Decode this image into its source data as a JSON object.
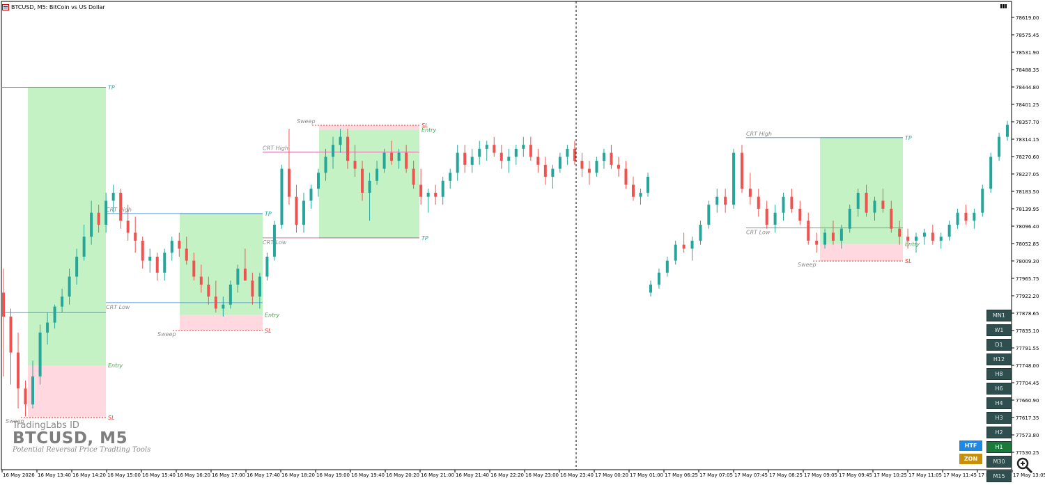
{
  "window": {
    "title": "BTCUSD, M5:  BitCoin vs US Dollar"
  },
  "watermark": {
    "brand": "TradingLabs ID",
    "symbol": "BTCUSD, M5",
    "tagline": "Potential Reversal Price Tradting Tools"
  },
  "colors": {
    "bull": "#26a69a",
    "bear": "#ef5350",
    "tp_zone": "#c4f2c4",
    "sl_zone": "#ffd9df",
    "crt_line": "#5b9bd5",
    "sl_label": "#e53935",
    "entry_label": "#43a047",
    "tp_label": "#26a69a",
    "crt_label": "#8c8c8c",
    "panel_button": "#2f4f4f",
    "panel_active": "#1b7a3a",
    "htf_button": "#1e88e5",
    "zon_button": "#c8900a"
  },
  "price_axis": {
    "ticks": [
      "78619.00",
      "78575.45",
      "78531.90",
      "78488.35",
      "78444.80",
      "78401.25",
      "78357.70",
      "78314.15",
      "78270.60",
      "78227.05",
      "78183.50",
      "78139.95",
      "78096.40",
      "78052.85",
      "78009.30",
      "77965.75",
      "77922.20",
      "77878.65",
      "77835.10",
      "77791.55",
      "77748.00",
      "77704.45",
      "77660.90",
      "77617.35",
      "77573.80",
      "77530.25"
    ]
  },
  "time_axis": {
    "ticks": [
      "16 May 2026",
      "16 May 13:40",
      "16 May 14:20",
      "16 May 15:00",
      "16 May 15:40",
      "16 May 16:20",
      "16 May 17:00",
      "16 May 17:40",
      "16 May 18:20",
      "16 May 19:00",
      "16 May 19:40",
      "16 May 20:20",
      "16 May 21:00",
      "16 May 21:40",
      "16 May 22:20",
      "16 May 23:00",
      "16 May 23:40",
      "17 May 00:20",
      "17 May 01:00",
      "17 May 06:25",
      "17 May 07:05",
      "17 May 07:45",
      "17 May 08:25",
      "17 May 09:05",
      "17 May 09:45",
      "17 May 10:25",
      "17 May 11:05",
      "17 May 11:45",
      "17 May 12:25",
      "17 May 13:05"
    ]
  },
  "chart_data": {
    "type": "candlestick",
    "symbol": "BTCUSD",
    "timeframe": "M5",
    "ylim": [
      77510,
      78640
    ],
    "candles": [
      [
        77930,
        77990,
        77720,
        77870
      ],
      [
        77870,
        77890,
        77700,
        77780
      ],
      [
        77780,
        77830,
        77640,
        77690
      ],
      [
        77690,
        77710,
        77620,
        77650
      ],
      [
        77650,
        77760,
        77640,
        77720
      ],
      [
        77720,
        77850,
        77700,
        77830
      ],
      [
        77830,
        77880,
        77800,
        77855
      ],
      [
        77855,
        77900,
        77840,
        77895
      ],
      [
        77895,
        77940,
        77880,
        77920
      ],
      [
        77920,
        77990,
        77900,
        77970
      ],
      [
        77970,
        78040,
        77950,
        78020
      ],
      [
        78020,
        78100,
        78010,
        78070
      ],
      [
        78070,
        78160,
        78050,
        78130
      ],
      [
        78130,
        78150,
        78080,
        78100
      ],
      [
        78100,
        78180,
        78080,
        78160
      ],
      [
        78160,
        78200,
        78130,
        78180
      ],
      [
        78180,
        78190,
        78090,
        78110
      ],
      [
        78110,
        78150,
        78060,
        78080
      ],
      [
        78080,
        78120,
        78030,
        78060
      ],
      [
        78060,
        78070,
        77990,
        78010
      ],
      [
        78010,
        78040,
        77980,
        78020
      ],
      [
        78020,
        78030,
        77960,
        77980
      ],
      [
        77980,
        78040,
        77960,
        78030
      ],
      [
        78030,
        78070,
        78010,
        78060
      ],
      [
        78060,
        78080,
        78020,
        78040
      ],
      [
        78040,
        78070,
        78000,
        78010
      ],
      [
        78010,
        78030,
        77960,
        77970
      ],
      [
        77970,
        78000,
        77930,
        77950
      ],
      [
        77950,
        77970,
        77900,
        77920
      ],
      [
        77920,
        77960,
        77880,
        77890
      ],
      [
        77890,
        77920,
        77870,
        77900
      ],
      [
        77900,
        77960,
        77890,
        77950
      ],
      [
        77950,
        78000,
        77930,
        77990
      ],
      [
        77990,
        78040,
        77970,
        77960
      ],
      [
        77960,
        77980,
        77900,
        77920
      ],
      [
        77920,
        77980,
        77890,
        77970
      ],
      [
        77970,
        78030,
        77960,
        78020
      ],
      [
        78020,
        78110,
        78010,
        78100
      ],
      [
        78100,
        78250,
        78090,
        78240
      ],
      [
        78240,
        78340,
        78150,
        78170
      ],
      [
        78170,
        78200,
        78080,
        78100
      ],
      [
        78100,
        78180,
        78080,
        78160
      ],
      [
        78160,
        78200,
        78140,
        78190
      ],
      [
        78190,
        78240,
        78170,
        78230
      ],
      [
        78230,
        78290,
        78210,
        78270
      ],
      [
        78270,
        78320,
        78240,
        78300
      ],
      [
        78300,
        78340,
        78280,
        78320
      ],
      [
        78320,
        78340,
        78240,
        78260
      ],
      [
        78260,
        78300,
        78220,
        78240
      ],
      [
        78240,
        78260,
        78160,
        78180
      ],
      [
        78180,
        78230,
        78110,
        78210
      ],
      [
        78210,
        78260,
        78200,
        78240
      ],
      [
        78240,
        78290,
        78230,
        78280
      ],
      [
        78280,
        78310,
        78250,
        78260
      ],
      [
        78260,
        78290,
        78240,
        78280
      ],
      [
        78280,
        78300,
        78230,
        78240
      ],
      [
        78240,
        78260,
        78190,
        78200
      ],
      [
        78200,
        78240,
        78150,
        78170
      ],
      [
        78170,
        78190,
        78130,
        78180
      ],
      [
        78180,
        78200,
        78150,
        78170
      ],
      [
        78170,
        78220,
        78150,
        78210
      ],
      [
        78210,
        78240,
        78190,
        78230
      ],
      [
        78230,
        78300,
        78210,
        78280
      ],
      [
        78280,
        78300,
        78230,
        78250
      ],
      [
        78250,
        78290,
        78230,
        78270
      ],
      [
        78270,
        78310,
        78250,
        78290
      ],
      [
        78290,
        78310,
        78260,
        78300
      ],
      [
        78300,
        78320,
        78270,
        78280
      ],
      [
        78280,
        78300,
        78240,
        78260
      ],
      [
        78260,
        78290,
        78230,
        78270
      ],
      [
        78270,
        78300,
        78250,
        78290
      ],
      [
        78290,
        78320,
        78270,
        78300
      ],
      [
        78300,
        78320,
        78260,
        78270
      ],
      [
        78270,
        78290,
        78230,
        78250
      ],
      [
        78250,
        78270,
        78200,
        78220
      ],
      [
        78220,
        78250,
        78190,
        78240
      ],
      [
        78240,
        78280,
        78230,
        78270
      ],
      [
        78270,
        78300,
        78250,
        78290
      ],
      [
        78290,
        78310,
        78250,
        78260
      ],
      [
        78260,
        78280,
        78220,
        78240
      ],
      [
        78240,
        78260,
        78200,
        78230
      ],
      [
        78230,
        78270,
        78220,
        78260
      ],
      [
        78260,
        78290,
        78240,
        78280
      ],
      [
        78280,
        78300,
        78240,
        78250
      ],
      [
        78250,
        78270,
        78220,
        78240
      ],
      [
        78240,
        78260,
        78190,
        78200
      ],
      [
        78200,
        78220,
        78160,
        78170
      ],
      [
        78170,
        78190,
        78150,
        78180
      ],
      [
        78180,
        78230,
        78170,
        78220
      ],
      [
        77930,
        77960,
        77920,
        77950
      ],
      [
        77950,
        77990,
        77940,
        77980
      ],
      [
        77980,
        78020,
        77970,
        78010
      ],
      [
        78010,
        78060,
        78000,
        78050
      ],
      [
        78050,
        78080,
        78030,
        78040
      ],
      [
        78040,
        78070,
        78010,
        78060
      ],
      [
        78060,
        78110,
        78050,
        78100
      ],
      [
        78100,
        78160,
        78090,
        78150
      ],
      [
        78150,
        78190,
        78130,
        78170
      ],
      [
        78170,
        78190,
        78130,
        78150
      ],
      [
        78150,
        78290,
        78140,
        78280
      ],
      [
        78280,
        78300,
        78180,
        78190
      ],
      [
        78190,
        78230,
        78150,
        78170
      ],
      [
        78170,
        78190,
        78120,
        78140
      ],
      [
        78140,
        78160,
        78090,
        78100
      ],
      [
        78100,
        78150,
        78080,
        78130
      ],
      [
        78130,
        78180,
        78110,
        78170
      ],
      [
        78170,
        78190,
        78130,
        78140
      ],
      [
        78140,
        78160,
        78100,
        78110
      ],
      [
        78110,
        78130,
        78050,
        78060
      ],
      [
        78060,
        78080,
        78030,
        78050
      ],
      [
        78050,
        78090,
        78040,
        78080
      ],
      [
        78080,
        78110,
        78050,
        78060
      ],
      [
        78060,
        78100,
        78040,
        78090
      ],
      [
        78090,
        78150,
        78080,
        78140
      ],
      [
        78140,
        78190,
        78120,
        78180
      ],
      [
        78180,
        78200,
        78120,
        78130
      ],
      [
        78130,
        78170,
        78110,
        78160
      ],
      [
        78160,
        78190,
        78130,
        78140
      ],
      [
        78140,
        78160,
        78080,
        78090
      ],
      [
        78090,
        78110,
        78050,
        78070
      ],
      [
        78070,
        78090,
        78040,
        78060
      ],
      [
        78060,
        78080,
        78030,
        78070
      ],
      [
        78070,
        78090,
        78050,
        78080
      ],
      [
        78080,
        78100,
        78050,
        78060
      ],
      [
        78060,
        78080,
        78040,
        78070
      ],
      [
        78070,
        78110,
        78060,
        78100
      ],
      [
        78100,
        78140,
        78090,
        78130
      ],
      [
        78130,
        78150,
        78100,
        78110
      ],
      [
        78110,
        78140,
        78090,
        78130
      ],
      [
        78130,
        78200,
        78120,
        78190
      ],
      [
        78190,
        78280,
        78180,
        78270
      ],
      [
        78270,
        78330,
        78260,
        78320
      ],
      [
        78320,
        78360,
        78310,
        78350
      ]
    ],
    "setups": [
      {
        "crt_high": null,
        "crt_low": null,
        "tp": 78444,
        "entry": 77748,
        "sl": 77617,
        "sweep_label": "Sweep",
        "direction": "long"
      },
      {
        "crt_high": 78128,
        "crt_low": 77905,
        "tp": 78128,
        "entry": 77874,
        "sl": 77835,
        "sweep_label": "Sweep",
        "direction": "long"
      },
      {
        "crt_high": 78282,
        "crt_low": 78067,
        "tp": 78067,
        "entry": 78338,
        "sl": 78349,
        "sweep_label": "Sweep",
        "direction": "short"
      },
      {
        "crt_high": 78318,
        "crt_low": 78092,
        "tp": 78318,
        "entry": 78052,
        "sl": 78009,
        "sweep_label": "Sweep",
        "direction": "long"
      }
    ],
    "labels": {
      "tp": "TP",
      "sl": "SL",
      "entry": "Entry",
      "crt_high": "CRT High",
      "crt_low": "CRT Low",
      "sweep": "Sweep"
    }
  },
  "timeframe_panel": {
    "buttons": [
      "MN1",
      "W1",
      "D1",
      "H12",
      "H8",
      "H6",
      "H4",
      "H3",
      "H2",
      "H1",
      "M30",
      "M15"
    ],
    "active": "H1",
    "htf_label": "HTF",
    "zon_label": "ZON"
  }
}
